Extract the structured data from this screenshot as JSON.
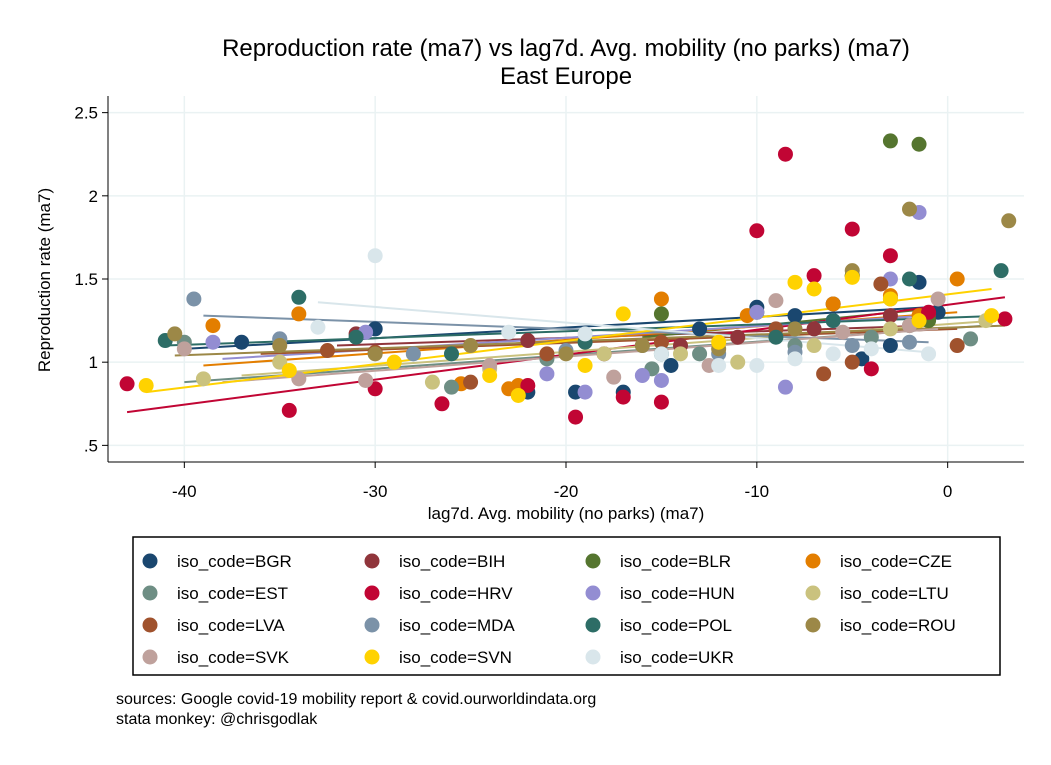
{
  "chart_data": {
    "type": "scatter",
    "title": "Reproduction rate (ma7) vs lag7d. Avg. mobility (no parks) (ma7)",
    "subtitle": "East Europe",
    "xlabel": "lag7d. Avg. mobility (no parks) (ma7)",
    "ylabel": "Reproduction rate (ma7)",
    "xlim": [
      -44,
      4
    ],
    "ylim": [
      0.4,
      2.6
    ],
    "xticks": [
      -40,
      -30,
      -20,
      -10,
      0
    ],
    "xtick_labels": [
      "-40",
      "-30",
      "-20",
      "-10",
      "0"
    ],
    "yticks": [
      0.5,
      1,
      1.5,
      2,
      2.5
    ],
    "ytick_labels": [
      ".5",
      "1",
      "1.5",
      "2",
      "2.5"
    ],
    "grid": true,
    "legend_position": "bottom",
    "series": [
      {
        "name": "iso_code=BGR",
        "color": "#1a476f",
        "points": [
          [
            -37,
            1.12
          ],
          [
            -30,
            1.2
          ],
          [
            -22,
            0.82
          ],
          [
            -19.5,
            0.82
          ],
          [
            -17,
            0.82
          ],
          [
            -14.5,
            0.98
          ],
          [
            -13,
            1.2
          ],
          [
            -10,
            1.33
          ],
          [
            -8,
            1.28
          ],
          [
            -6,
            1.35
          ],
          [
            -4.5,
            1.02
          ],
          [
            -3,
            1.1
          ],
          [
            -1.5,
            1.48
          ],
          [
            -0.5,
            1.3
          ]
        ],
        "fit": [
          [
            -40,
            1.08
          ],
          [
            -1,
            1.33
          ]
        ]
      },
      {
        "name": "iso_code=BIH",
        "color": "#90353b",
        "points": [
          [
            -31,
            1.17
          ],
          [
            -22,
            1.13
          ],
          [
            -18,
            1.05
          ],
          [
            -14,
            1.1
          ],
          [
            -11,
            1.15
          ],
          [
            -7,
            1.2
          ],
          [
            -5,
            1.52
          ],
          [
            -3,
            1.28
          ],
          [
            -1,
            1.28
          ]
        ],
        "fit": [
          [
            -32,
            1.1
          ],
          [
            -1,
            1.22
          ]
        ]
      },
      {
        "name": "iso_code=BLR",
        "color": "#55752f",
        "points": [
          [
            -15,
            1.29
          ],
          [
            -10,
            1.3
          ],
          [
            -5,
            1.52
          ],
          [
            -3,
            2.33
          ],
          [
            -1.5,
            2.31
          ],
          [
            -1,
            1.25
          ]
        ],
        "fit": [
          [
            -16,
            1.15
          ],
          [
            -1,
            1.32
          ]
        ]
      },
      {
        "name": "iso_code=CZE",
        "color": "#e37e00",
        "points": [
          [
            -38.5,
            1.22
          ],
          [
            -34,
            1.29
          ],
          [
            -25.5,
            0.87
          ],
          [
            -23,
            0.84
          ],
          [
            -22.5,
            0.86
          ],
          [
            -15,
            1.38
          ],
          [
            -10.5,
            1.28
          ],
          [
            -6,
            1.35
          ],
          [
            -3,
            1.4
          ],
          [
            -1.5,
            1.28
          ],
          [
            0.5,
            1.5
          ]
        ],
        "fit": [
          [
            -39,
            0.98
          ],
          [
            0.5,
            1.3
          ]
        ]
      },
      {
        "name": "iso_code=EST",
        "color": "#6e8e84",
        "points": [
          [
            -40,
            1.12
          ],
          [
            -26,
            0.85
          ],
          [
            -21,
            1.02
          ],
          [
            -15.5,
            0.96
          ],
          [
            -13,
            1.05
          ],
          [
            -8,
            1.1
          ],
          [
            -4,
            1.15
          ],
          [
            -2,
            1.22
          ],
          [
            1.2,
            1.14
          ]
        ],
        "fit": [
          [
            -40,
            0.88
          ],
          [
            2,
            1.22
          ]
        ]
      },
      {
        "name": "iso_code=HRV",
        "color": "#c10534",
        "points": [
          [
            -43,
            0.87
          ],
          [
            -34.5,
            0.71
          ],
          [
            -30,
            0.84
          ],
          [
            -26.5,
            0.75
          ],
          [
            -22,
            0.86
          ],
          [
            -19.5,
            0.67
          ],
          [
            -17,
            0.79
          ],
          [
            -15,
            0.76
          ],
          [
            -10,
            1.79
          ],
          [
            -8.5,
            2.25
          ],
          [
            -7,
            1.52
          ],
          [
            -5,
            1.8
          ],
          [
            -4,
            0.96
          ],
          [
            -3,
            1.64
          ],
          [
            -1,
            1.3
          ],
          [
            3,
            1.26
          ]
        ],
        "fit": [
          [
            -43,
            0.7
          ],
          [
            3,
            1.39
          ]
        ]
      },
      {
        "name": "iso_code=HUN",
        "color": "#938dd2",
        "points": [
          [
            -38.5,
            1.12
          ],
          [
            -35,
            1.14
          ],
          [
            -30.5,
            1.18
          ],
          [
            -21,
            0.93
          ],
          [
            -19,
            0.82
          ],
          [
            -16,
            0.92
          ],
          [
            -15,
            0.89
          ],
          [
            -10,
            1.3
          ],
          [
            -8.5,
            0.85
          ],
          [
            -6,
            1.25
          ],
          [
            -3,
            1.5
          ],
          [
            -1.5,
            1.9
          ]
        ],
        "fit": [
          [
            -38,
            1.02
          ],
          [
            -1,
            1.28
          ]
        ]
      },
      {
        "name": "iso_code=LTU",
        "color": "#cac27e",
        "points": [
          [
            -39,
            0.9
          ],
          [
            -35,
            1.0
          ],
          [
            -27,
            0.88
          ],
          [
            -24,
            0.96
          ],
          [
            -18,
            1.05
          ],
          [
            -14,
            1.05
          ],
          [
            -11,
            1.0
          ],
          [
            -7,
            1.1
          ],
          [
            -3,
            1.2
          ],
          [
            2,
            1.25
          ]
        ],
        "fit": [
          [
            -37,
            0.92
          ],
          [
            2.5,
            1.25
          ]
        ]
      },
      {
        "name": "iso_code=LVA",
        "color": "#a0522d",
        "points": [
          [
            -32.5,
            1.07
          ],
          [
            -30,
            1.06
          ],
          [
            -25,
            0.88
          ],
          [
            -21,
            1.05
          ],
          [
            -15,
            1.12
          ],
          [
            -9,
            1.2
          ],
          [
            -6.5,
            0.93
          ],
          [
            -5,
            1.0
          ],
          [
            -3.5,
            1.47
          ],
          [
            0.5,
            1.1
          ]
        ],
        "fit": [
          [
            -36,
            1.05
          ],
          [
            0.5,
            1.2
          ]
        ]
      },
      {
        "name": "iso_code=MDA",
        "color": "#7b92a8",
        "points": [
          [
            -39.5,
            1.38
          ],
          [
            -35,
            1.14
          ],
          [
            -28,
            1.05
          ],
          [
            -20,
            1.07
          ],
          [
            -16,
            1.1
          ],
          [
            -12,
            1.05
          ],
          [
            -8,
            1.06
          ],
          [
            -5,
            1.1
          ],
          [
            -2,
            1.12
          ]
        ],
        "fit": [
          [
            -39,
            1.28
          ],
          [
            -1,
            1.12
          ]
        ]
      },
      {
        "name": "iso_code=POL",
        "color": "#2d6d66",
        "points": [
          [
            -41,
            1.13
          ],
          [
            -34,
            1.39
          ],
          [
            -31,
            1.15
          ],
          [
            -26,
            1.05
          ],
          [
            -19,
            1.12
          ],
          [
            -15,
            1.05
          ],
          [
            -9,
            1.15
          ],
          [
            -6,
            1.25
          ],
          [
            -2,
            1.5
          ],
          [
            2.8,
            1.55
          ]
        ],
        "fit": [
          [
            -41,
            1.1
          ],
          [
            3,
            1.28
          ]
        ]
      },
      {
        "name": "iso_code=ROU",
        "color": "#9c8847",
        "points": [
          [
            -40.5,
            1.17
          ],
          [
            -35,
            1.1
          ],
          [
            -30,
            1.05
          ],
          [
            -25,
            1.1
          ],
          [
            -20,
            1.05
          ],
          [
            -16,
            1.1
          ],
          [
            -12,
            1.08
          ],
          [
            -8,
            1.2
          ],
          [
            -5,
            1.55
          ],
          [
            -3,
            1.38
          ],
          [
            -2,
            1.92
          ],
          [
            3.2,
            1.85
          ]
        ],
        "fit": [
          [
            -40.5,
            1.04
          ],
          [
            3,
            1.22
          ]
        ]
      },
      {
        "name": "iso_code=SVK",
        "color": "#bfa19c",
        "points": [
          [
            -40,
            1.08
          ],
          [
            -34,
            0.9
          ],
          [
            -30.5,
            0.89
          ],
          [
            -24,
            0.98
          ],
          [
            -17.5,
            0.91
          ],
          [
            -12.5,
            0.98
          ],
          [
            -9,
            1.37
          ],
          [
            -5.5,
            1.18
          ],
          [
            -2,
            1.22
          ],
          [
            -0.5,
            1.38
          ]
        ],
        "fit": [
          [
            -38,
            0.88
          ],
          [
            -0.5,
            1.2
          ]
        ]
      },
      {
        "name": "iso_code=SVN",
        "color": "#ffd200",
        "points": [
          [
            -42,
            0.86
          ],
          [
            -34.5,
            0.95
          ],
          [
            -29,
            1.0
          ],
          [
            -24,
            0.92
          ],
          [
            -22.5,
            0.8
          ],
          [
            -19,
            0.98
          ],
          [
            -17,
            1.29
          ],
          [
            -12,
            1.12
          ],
          [
            -8,
            1.48
          ],
          [
            -7,
            1.44
          ],
          [
            -5,
            1.51
          ],
          [
            -3,
            1.38
          ],
          [
            -1.5,
            1.25
          ],
          [
            2.3,
            1.28
          ]
        ],
        "fit": [
          [
            -42,
            0.82
          ],
          [
            2.3,
            1.44
          ]
        ]
      },
      {
        "name": "iso_code=UKR",
        "color": "#d9e6eb",
        "points": [
          [
            -30,
            1.64
          ],
          [
            -33,
            1.21
          ],
          [
            -23,
            1.18
          ],
          [
            -19,
            1.17
          ],
          [
            -15,
            1.05
          ],
          [
            -12,
            0.98
          ],
          [
            -10,
            0.98
          ],
          [
            -8,
            1.02
          ],
          [
            -6,
            1.05
          ],
          [
            -4,
            1.08
          ],
          [
            -1,
            1.05
          ]
        ],
        "fit": [
          [
            -33,
            1.36
          ],
          [
            -1,
            1.06
          ]
        ]
      }
    ],
    "sources_note": "sources: Google covid-19 mobility report & covid.ourworldindata.org",
    "author_note": "stata monkey: @chrisgodlak"
  }
}
